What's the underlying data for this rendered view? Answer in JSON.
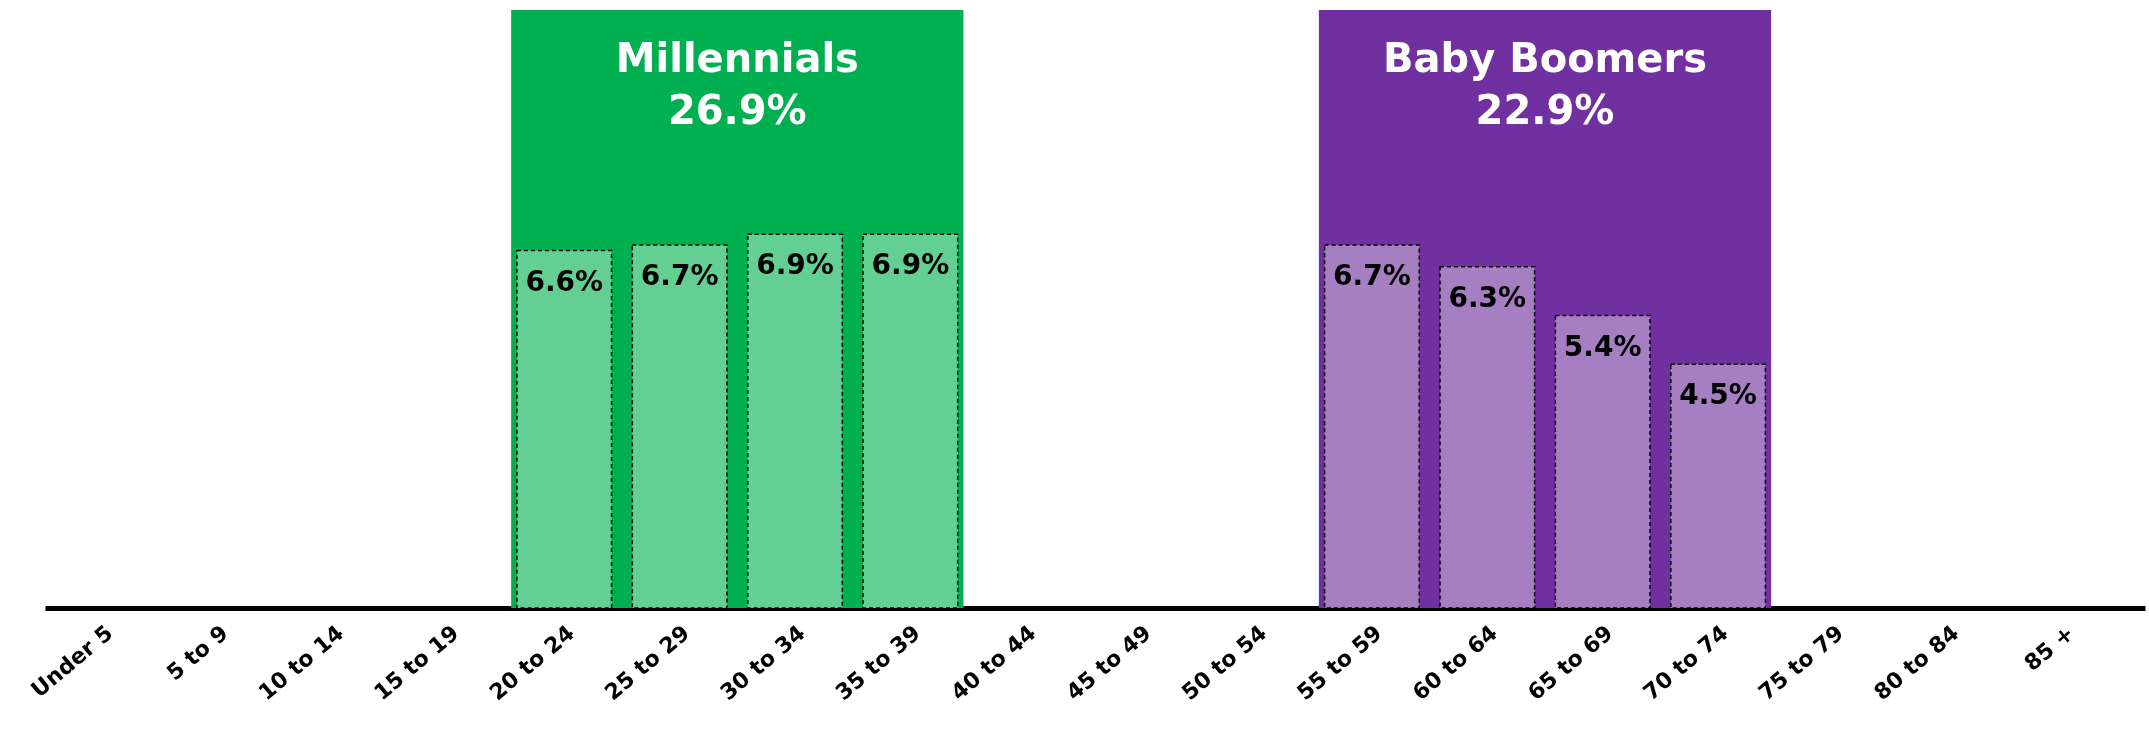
{
  "chart_data": {
    "type": "bar",
    "categories": [
      "Under 5",
      "5 to 9",
      "10 to 14",
      "15 to 19",
      "20 to 24",
      "25 to 29",
      "30 to 34",
      "35 to 39",
      "40 to 44",
      "45 to 49",
      "50 to 54",
      "55 to 59",
      "60 to 64",
      "65 to 69",
      "70 to 74",
      "75 to 79",
      "80 to 84",
      "85 +"
    ],
    "values": [
      null,
      null,
      null,
      null,
      6.6,
      6.7,
      6.9,
      6.9,
      null,
      null,
      null,
      6.7,
      6.3,
      5.4,
      4.5,
      null,
      null,
      null
    ],
    "colors": [
      null,
      null,
      null,
      null,
      "#63cf92",
      "#63cf92",
      "#63cf92",
      "#63cf92",
      null,
      null,
      null,
      "#a57fc2",
      "#a57fc2",
      "#a57fc2",
      "#a57fc2",
      null,
      null,
      null
    ],
    "value_labels": [
      null,
      null,
      null,
      null,
      "6.6%",
      "6.7%",
      "6.9%",
      "6.9%",
      null,
      null,
      null,
      "6.7%",
      "6.3%",
      "5.4%",
      "4.5%",
      null,
      null,
      null
    ],
    "bands": [
      {
        "axis": "x",
        "from": "20 to 24",
        "to": "35 to 39",
        "label": "Millennials\n26.9%",
        "color": "#00b050"
      },
      {
        "axis": "x",
        "from": "55 to 59",
        "to": "70 to 74",
        "label": "Baby Boomers\n22.9%",
        "color": "#7030a0"
      }
    ]
  }
}
